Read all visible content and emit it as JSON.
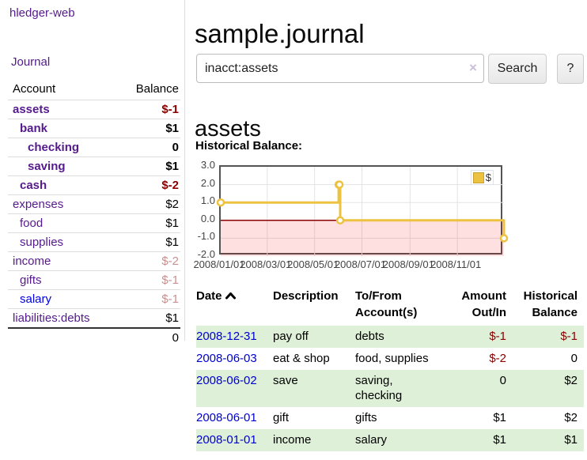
{
  "sidebar": {
    "brand": "hledger-web",
    "journal_link": "Journal",
    "accounts": {
      "headers": {
        "account": "Account",
        "balance": "Balance"
      },
      "rows": [
        {
          "name": "assets",
          "balance": "$-1",
          "level": 1,
          "matched": true,
          "balance_tone": "neg"
        },
        {
          "name": "bank",
          "balance": "$1",
          "level": 2,
          "matched": true,
          "balance_tone": "pos"
        },
        {
          "name": "checking",
          "balance": "0",
          "level": 3,
          "matched": true,
          "balance_tone": "pos"
        },
        {
          "name": "saving",
          "balance": "$1",
          "level": 3,
          "matched": true,
          "balance_tone": "pos"
        },
        {
          "name": "cash",
          "balance": "$-2",
          "level": 2,
          "matched": true,
          "balance_tone": "neg"
        },
        {
          "name": "expenses",
          "balance": "$2",
          "level": 1,
          "matched": false,
          "balance_tone": "pos"
        },
        {
          "name": "food",
          "balance": "$1",
          "level": 2,
          "matched": false,
          "balance_tone": "pos"
        },
        {
          "name": "supplies",
          "balance": "$1",
          "level": 2,
          "matched": false,
          "balance_tone": "pos"
        },
        {
          "name": "income",
          "balance": "$-2",
          "level": 1,
          "matched": false,
          "balance_tone": "negmuted"
        },
        {
          "name": "gifts",
          "balance": "$-1",
          "level": 2,
          "matched": false,
          "balance_tone": "negmuted"
        },
        {
          "name": "salary",
          "balance": "$-1",
          "level": 2,
          "matched": false,
          "balance_tone": "negmuted",
          "link_tone": "blue"
        },
        {
          "name": "liabilities:debts",
          "balance": "$1",
          "level": 1,
          "matched": false,
          "balance_tone": "pos"
        }
      ],
      "total": "0"
    }
  },
  "main": {
    "title": "sample.journal",
    "search": {
      "value": "inacct:assets",
      "clear_icon": "×",
      "search_button": "Search",
      "help_button": "?"
    },
    "account_heading": "assets",
    "chart_label": "Historical Balance:",
    "transactions": {
      "headers": {
        "date": "Date",
        "description": "Description",
        "accounts": "To/From Account(s)",
        "amount": "Amount Out/In",
        "balance": "Historical Balance"
      },
      "rows": [
        {
          "date": "2008-12-31",
          "description": "pay off",
          "accounts": "debts",
          "amount": "$-1",
          "balance": "$-1",
          "shaded": true
        },
        {
          "date": "2008-06-03",
          "description": "eat & shop",
          "accounts": "food, supplies",
          "amount": "$-2",
          "balance": "0",
          "shaded": false
        },
        {
          "date": "2008-06-02",
          "description": "save",
          "accounts": "saving,\nchecking",
          "amount": "0",
          "balance": "$2",
          "shaded": true
        },
        {
          "date": "2008-06-01",
          "description": "gift",
          "accounts": "gifts",
          "amount": "$1",
          "balance": "$2",
          "shaded": false
        },
        {
          "date": "2008-01-01",
          "description": "income",
          "accounts": "salary",
          "amount": "$1",
          "balance": "$1",
          "shaded": true
        }
      ]
    }
  },
  "chart_data": {
    "type": "line",
    "title": "Historical Balance:",
    "step": true,
    "series": [
      {
        "name": "$",
        "color": "#EDC240",
        "points": [
          [
            "2008-01-01",
            1
          ],
          [
            "2008-06-01",
            2
          ],
          [
            "2008-06-02",
            2
          ],
          [
            "2008-06-03",
            0
          ],
          [
            "2008-12-31",
            -1
          ]
        ]
      }
    ],
    "xlim": [
      "2008-01-01",
      "2008-12-31"
    ],
    "ylim": [
      -2,
      3
    ],
    "yticks": [
      "3.0",
      "2.0",
      "1.0",
      "0.0",
      "-1.0",
      "-2.0"
    ],
    "xticks": [
      "2008/01/01",
      "2008/03/01",
      "2008/05/01",
      "2008/07/01",
      "2008/09/01",
      "2008/11/01"
    ],
    "legend_position": "top-right",
    "grid": true,
    "negative_fill": "rgba(255,0,0,0.12)",
    "zero_line_color": "#8B0000",
    "border_color": "#545454"
  },
  "colors": {
    "link_purple": "#551A8B",
    "link_blue": "#0000CC",
    "negative_strong": "#8B0000",
    "negative_muted": "#C98F8F",
    "row_stripe_green": "#dff0d8",
    "series_gold": "#EDC240"
  }
}
